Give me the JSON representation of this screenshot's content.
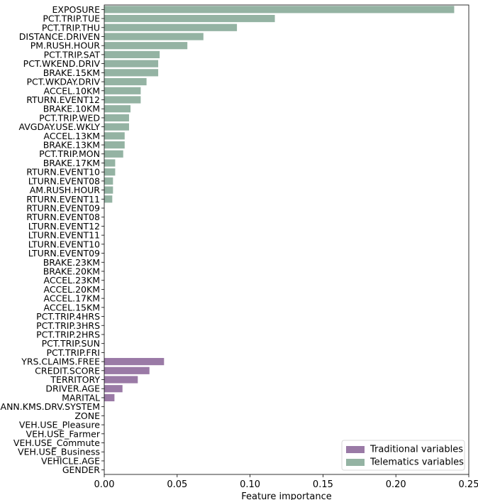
{
  "chart_data": {
    "type": "bar",
    "orientation": "horizontal",
    "xlabel": "Feature importance",
    "ylabel": "",
    "title": "",
    "xlim": [
      0,
      0.25
    ],
    "xticks": [
      "0.00",
      "0.05",
      "0.10",
      "0.15",
      "0.20",
      "0.25"
    ],
    "grid": false,
    "legend_position": "bottom-right",
    "colors": {
      "Traditional variables": "#9a7aa6",
      "Telematics variables": "#94b3a3"
    },
    "series": [
      {
        "name": "Traditional variables",
        "color": "#9a7aa6"
      },
      {
        "name": "Telematics variables",
        "color": "#94b3a3"
      }
    ],
    "bars": [
      {
        "label": "EXPOSURE",
        "value": 0.24,
        "group": "Telematics variables"
      },
      {
        "label": "PCT.TRIP.TUE",
        "value": 0.117,
        "group": "Telematics variables"
      },
      {
        "label": "PCT.TRIP.THU",
        "value": 0.091,
        "group": "Telematics variables"
      },
      {
        "label": "DISTANCE.DRIVEN",
        "value": 0.068,
        "group": "Telematics variables"
      },
      {
        "label": "PM.RUSH.HOUR",
        "value": 0.057,
        "group": "Telematics variables"
      },
      {
        "label": "PCT.TRIP.SAT",
        "value": 0.038,
        "group": "Telematics variables"
      },
      {
        "label": "PCT.WKEND.DRIV",
        "value": 0.037,
        "group": "Telematics variables"
      },
      {
        "label": "BRAKE.15KM",
        "value": 0.037,
        "group": "Telematics variables"
      },
      {
        "label": "PCT.WKDAY.DRIV",
        "value": 0.029,
        "group": "Telematics variables"
      },
      {
        "label": "ACCEL.10KM",
        "value": 0.025,
        "group": "Telematics variables"
      },
      {
        "label": "RTURN.EVENT12",
        "value": 0.025,
        "group": "Telematics variables"
      },
      {
        "label": "BRAKE.10KM",
        "value": 0.018,
        "group": "Telematics variables"
      },
      {
        "label": "PCT.TRIP.WED",
        "value": 0.017,
        "group": "Telematics variables"
      },
      {
        "label": "AVGDAY.USE.WKLY",
        "value": 0.017,
        "group": "Telematics variables"
      },
      {
        "label": "ACCEL.13KM",
        "value": 0.014,
        "group": "Telematics variables"
      },
      {
        "label": "BRAKE.13KM",
        "value": 0.014,
        "group": "Telematics variables"
      },
      {
        "label": "PCT.TRIP.MON",
        "value": 0.013,
        "group": "Telematics variables"
      },
      {
        "label": "BRAKE.17KM",
        "value": 0.0075,
        "group": "Telematics variables"
      },
      {
        "label": "RTURN.EVENT10",
        "value": 0.0075,
        "group": "Telematics variables"
      },
      {
        "label": "LTURN.EVENT08",
        "value": 0.006,
        "group": "Telematics variables"
      },
      {
        "label": "AM.RUSH.HOUR",
        "value": 0.006,
        "group": "Telematics variables"
      },
      {
        "label": "RTURN.EVENT11",
        "value": 0.0055,
        "group": "Telematics variables"
      },
      {
        "label": "RTURN.EVENT09",
        "value": 0,
        "group": "Telematics variables"
      },
      {
        "label": "RTURN.EVENT08",
        "value": 0,
        "group": "Telematics variables"
      },
      {
        "label": "LTURN.EVENT12",
        "value": 0,
        "group": "Telematics variables"
      },
      {
        "label": "LTURN.EVENT11",
        "value": 0,
        "group": "Telematics variables"
      },
      {
        "label": "LTURN.EVENT10",
        "value": 0,
        "group": "Telematics variables"
      },
      {
        "label": "LTURN.EVENT09",
        "value": 0,
        "group": "Telematics variables"
      },
      {
        "label": "BRAKE.23KM",
        "value": 0,
        "group": "Telematics variables"
      },
      {
        "label": "BRAKE.20KM",
        "value": 0,
        "group": "Telematics variables"
      },
      {
        "label": "ACCEL.23KM",
        "value": 0,
        "group": "Telematics variables"
      },
      {
        "label": "ACCEL.20KM",
        "value": 0,
        "group": "Telematics variables"
      },
      {
        "label": "ACCEL.17KM",
        "value": 0,
        "group": "Telematics variables"
      },
      {
        "label": "ACCEL.15KM",
        "value": 0,
        "group": "Telematics variables"
      },
      {
        "label": "PCT.TRIP.4HRS",
        "value": 0,
        "group": "Telematics variables"
      },
      {
        "label": "PCT.TRIP.3HRS",
        "value": 0,
        "group": "Telematics variables"
      },
      {
        "label": "PCT.TRIP.2HRS",
        "value": 0,
        "group": "Telematics variables"
      },
      {
        "label": "PCT.TRIP.SUN",
        "value": 0,
        "group": "Telematics variables"
      },
      {
        "label": "PCT.TRIP.FRI",
        "value": 0,
        "group": "Telematics variables"
      },
      {
        "label": "YRS.CLAIMS.FREE",
        "value": 0.041,
        "group": "Traditional variables"
      },
      {
        "label": "CREDIT.SCORE",
        "value": 0.031,
        "group": "Traditional variables"
      },
      {
        "label": "TERRITORY",
        "value": 0.023,
        "group": "Traditional variables"
      },
      {
        "label": "DRIVER.AGE",
        "value": 0.0125,
        "group": "Traditional variables"
      },
      {
        "label": "MARITAL",
        "value": 0.007,
        "group": "Traditional variables"
      },
      {
        "label": "ANN.KMS.DRV.SYSTEM",
        "value": 0,
        "group": "Traditional variables"
      },
      {
        "label": "ZONE",
        "value": 0,
        "group": "Traditional variables"
      },
      {
        "label": "VEH.USE_Pleasure",
        "value": 0,
        "group": "Traditional variables"
      },
      {
        "label": "VEH.USE_Farmer",
        "value": 0,
        "group": "Traditional variables"
      },
      {
        "label": "VEH.USE_Commute",
        "value": 0,
        "group": "Traditional variables"
      },
      {
        "label": "VEH.USE_Business",
        "value": 0,
        "group": "Traditional variables"
      },
      {
        "label": "VEHICLE.AGE",
        "value": 0,
        "group": "Traditional variables"
      },
      {
        "label": "GENDER",
        "value": 0,
        "group": "Traditional variables"
      }
    ]
  }
}
